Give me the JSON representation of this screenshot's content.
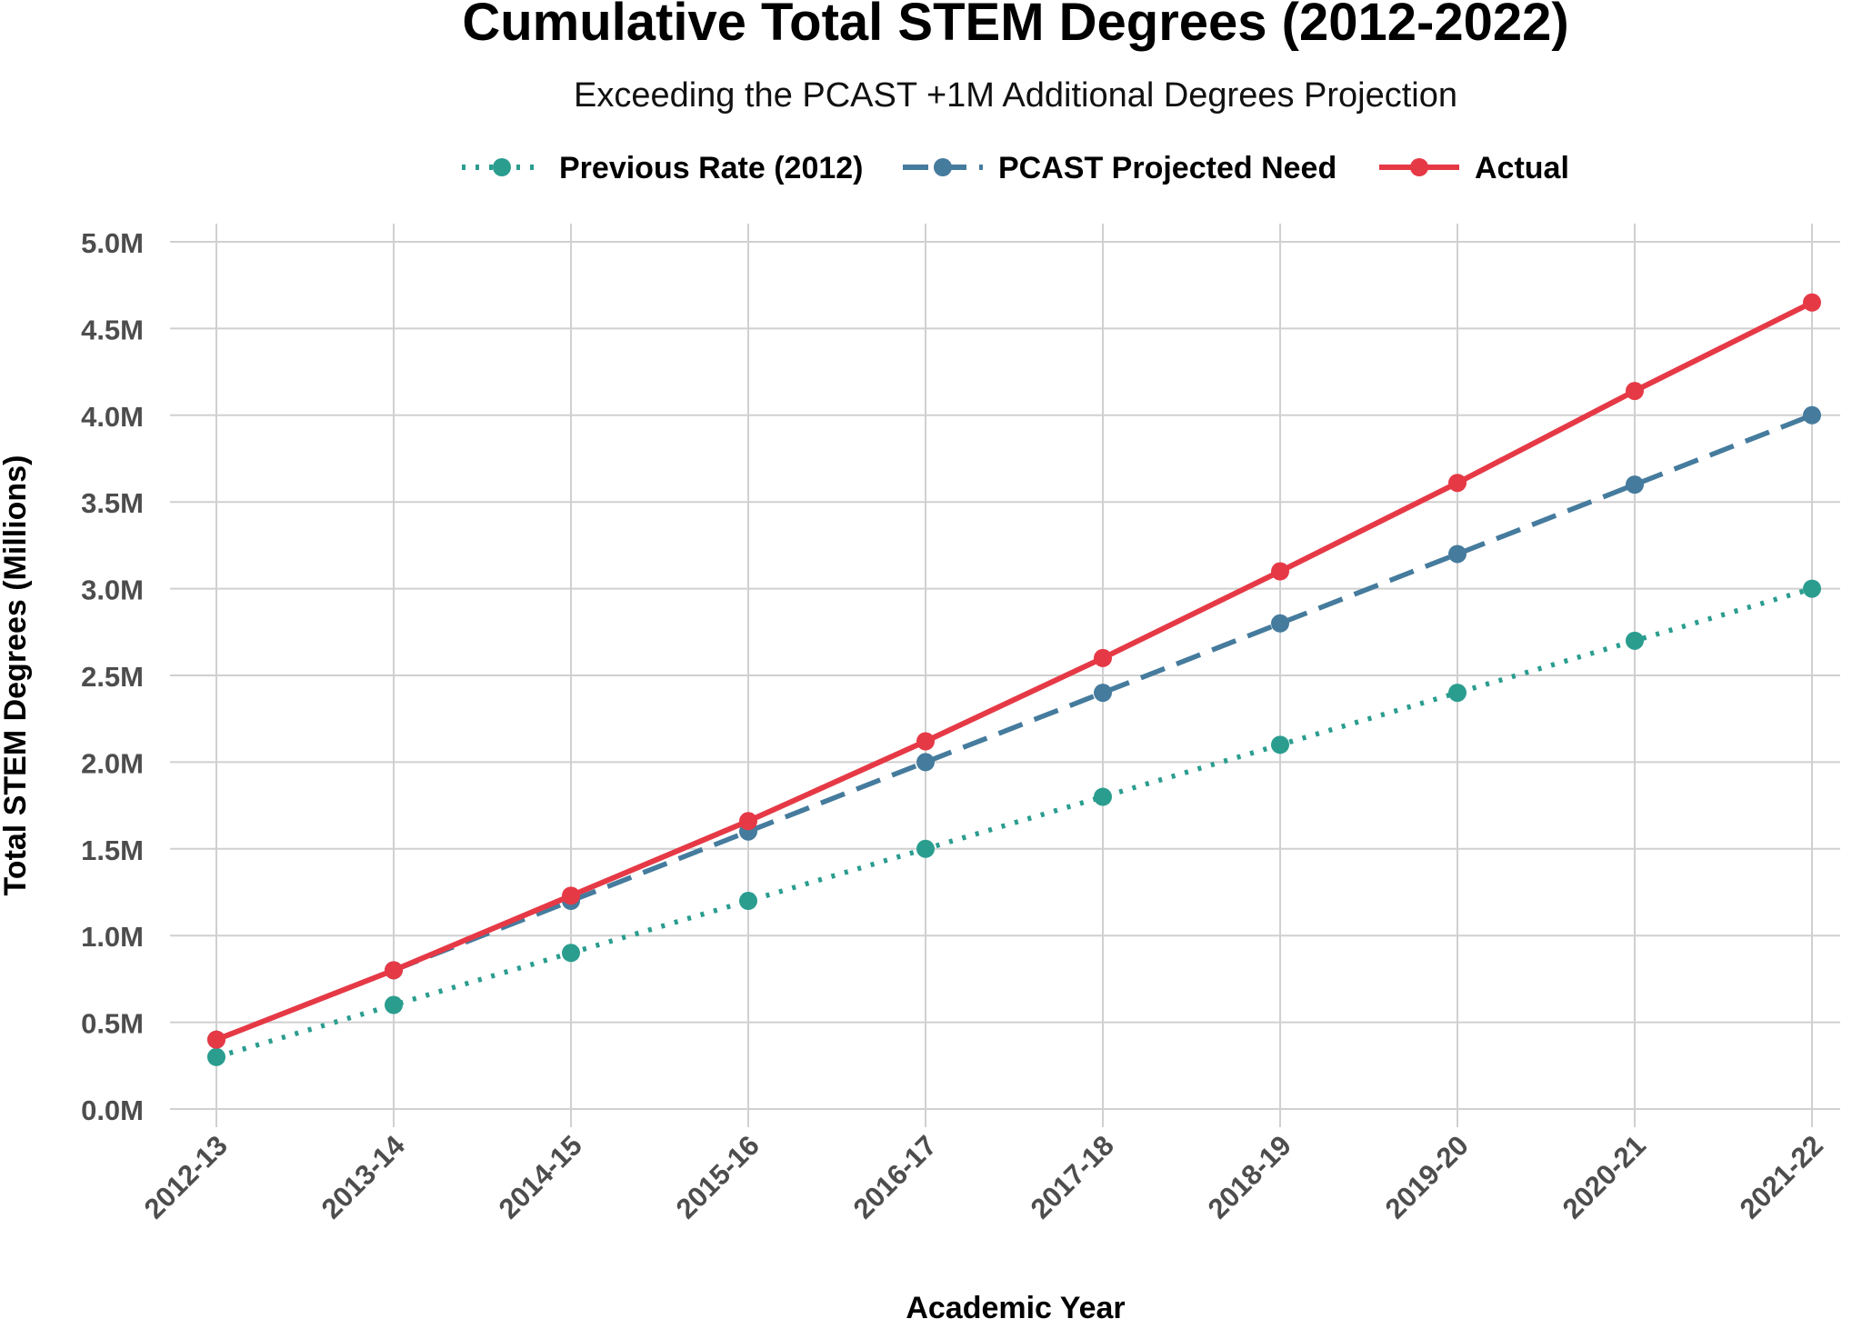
{
  "chart_data": {
    "type": "line",
    "title": "Cumulative Total STEM Degrees (2012-2022)",
    "subtitle": "Exceeding the PCAST +1M Additional Degrees Projection",
    "xlabel": "Academic Year",
    "ylabel": "Total STEM Degrees (Millions)",
    "categories": [
      "2012-13",
      "2013-14",
      "2014-15",
      "2015-16",
      "2016-17",
      "2017-18",
      "2018-19",
      "2019-20",
      "2020-21",
      "2021-22"
    ],
    "ylim": [
      0,
      5.0
    ],
    "yticks": [
      0,
      0.5,
      1.0,
      1.5,
      2.0,
      2.5,
      3.0,
      3.5,
      4.0,
      4.5,
      5.0
    ],
    "ytick_labels": [
      "0.0M",
      "0.5M",
      "1.0M",
      "1.5M",
      "2.0M",
      "2.5M",
      "3.0M",
      "3.5M",
      "4.0M",
      "4.5M",
      "5.0M"
    ],
    "grid": true,
    "legend_position": "top",
    "series": [
      {
        "name": "Previous Rate (2012)",
        "color": "#2a9d8f",
        "style": "dotted",
        "values": [
          0.3,
          0.6,
          0.9,
          1.2,
          1.5,
          1.8,
          2.1,
          2.4,
          2.7,
          3.0
        ]
      },
      {
        "name": "PCAST Projected Need",
        "color": "#457b9d",
        "style": "dashed",
        "values": [
          0.4,
          0.8,
          1.2,
          1.6,
          2.0,
          2.4,
          2.8,
          3.2,
          3.6,
          4.0
        ]
      },
      {
        "name": "Actual",
        "color": "#e63946",
        "style": "solid",
        "values": [
          0.4,
          0.8,
          1.23,
          1.66,
          2.12,
          2.6,
          3.1,
          3.61,
          4.14,
          4.65
        ]
      }
    ]
  }
}
